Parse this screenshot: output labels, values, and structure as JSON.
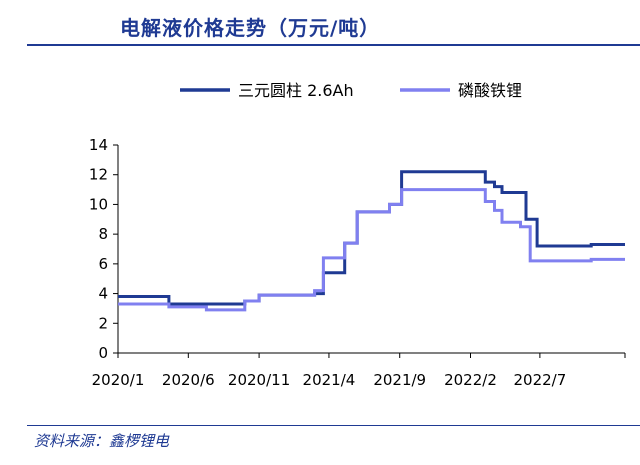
{
  "header": {
    "title": "电解液价格走势（万元/吨）"
  },
  "footer": {
    "source": "资料来源：鑫椤锂电"
  },
  "chart_data": {
    "type": "line",
    "title": "电解液价格走势（万元/吨）",
    "xlabel": "",
    "ylabel": "",
    "ylim": [
      0,
      14
    ],
    "xlim": [
      "2020-01",
      "2023-01"
    ],
    "yticks": [
      0,
      2,
      4,
      6,
      8,
      10,
      12,
      14
    ],
    "xticks": [
      "2020/1",
      "2020/6",
      "2020/11",
      "2021/4",
      "2021/9",
      "2022/2",
      "2022/7"
    ],
    "grid": false,
    "legend": "top",
    "step": true,
    "series": [
      {
        "name": "三元圆柱 2.6Ah",
        "color": "#1f3a93",
        "points": [
          [
            "2020-01-01",
            3.8
          ],
          [
            "2020-04-20",
            3.3
          ],
          [
            "2020-10-01",
            3.5
          ],
          [
            "2020-11-01",
            3.9
          ],
          [
            "2021-03-01",
            4.0
          ],
          [
            "2021-03-20",
            5.4
          ],
          [
            "2021-05-05",
            7.4
          ],
          [
            "2021-06-01",
            9.5
          ],
          [
            "2021-08-10",
            10.0
          ],
          [
            "2021-09-05",
            12.2
          ],
          [
            "2022-03-05",
            11.5
          ],
          [
            "2022-03-25",
            11.2
          ],
          [
            "2022-04-10",
            10.8
          ],
          [
            "2022-06-01",
            9.0
          ],
          [
            "2022-06-25",
            7.2
          ],
          [
            "2022-10-20",
            7.3
          ],
          [
            "2023-01-01",
            7.3
          ]
        ]
      },
      {
        "name": "磷酸铁锂",
        "color": "#8080f0",
        "points": [
          [
            "2020-01-01",
            3.3
          ],
          [
            "2020-04-20",
            3.1
          ],
          [
            "2020-07-10",
            2.9
          ],
          [
            "2020-10-01",
            3.5
          ],
          [
            "2020-11-01",
            3.9
          ],
          [
            "2021-03-01",
            4.2
          ],
          [
            "2021-03-20",
            6.4
          ],
          [
            "2021-05-05",
            7.4
          ],
          [
            "2021-06-01",
            9.5
          ],
          [
            "2021-08-10",
            10.0
          ],
          [
            "2021-09-05",
            11.0
          ],
          [
            "2022-03-05",
            10.2
          ],
          [
            "2022-03-25",
            9.6
          ],
          [
            "2022-04-10",
            8.8
          ],
          [
            "2022-05-20",
            8.5
          ],
          [
            "2022-06-10",
            6.2
          ],
          [
            "2022-10-20",
            6.3
          ],
          [
            "2023-01-01",
            6.3
          ]
        ]
      }
    ]
  }
}
